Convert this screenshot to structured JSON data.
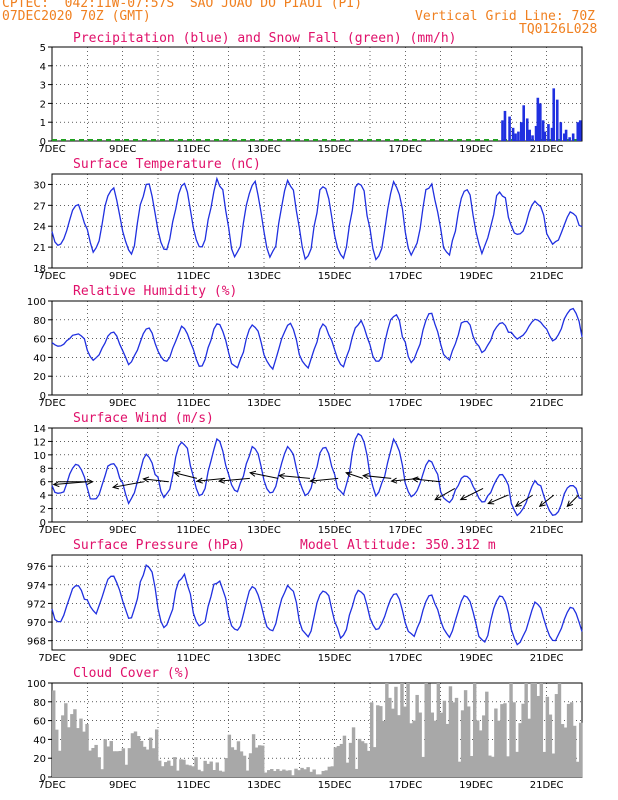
{
  "header": {
    "line1": "CPTEC:  042:11W-07:57S  SAO JOAO DO PIAUI (PI)",
    "line2_left": "07DEC2020 70Z (GMT)",
    "line2_right": "Vertical Grid Line: 70Z",
    "run_id": "TQ0126L028"
  },
  "colors": {
    "header": "#f08020",
    "title": "#e0106a",
    "series": "#2030e0",
    "snow": "#20a020",
    "cloud": "#a8a8a8"
  },
  "chart_data": [
    {
      "type": "bar",
      "title": "Precipitation (blue) and Snow Fall (green) (mm/h)",
      "ylim": [
        0,
        5
      ],
      "yticks": [
        0,
        1,
        2,
        3,
        4,
        5
      ],
      "x_start_day": 7,
      "x_end_day": 22,
      "xticks": [
        "7DEC",
        "9DEC",
        "11DEC",
        "13DEC",
        "15DEC",
        "17DEC",
        "19DEC",
        "21DEC"
      ],
      "series": [
        {
          "name": "blue",
          "x": [
            19.75,
            19.82,
            19.95,
            20.05,
            20.12,
            20.2,
            20.28,
            20.35,
            20.45,
            20.52,
            20.6,
            20.7,
            20.75,
            20.82,
            20.9,
            20.95,
            21.05,
            21.15,
            21.2,
            21.3,
            21.4,
            21.5,
            21.55,
            21.65,
            21.75,
            21.88,
            21.95
          ],
          "values": [
            1.1,
            1.6,
            1.3,
            0.7,
            0.4,
            0.5,
            1.0,
            1.9,
            1.2,
            0.6,
            0.3,
            0.8,
            2.3,
            2.0,
            1.1,
            0.5,
            0.9,
            0.7,
            2.8,
            2.2,
            1.0,
            0.4,
            0.6,
            0.2,
            0.4,
            1.0,
            1.1
          ]
        },
        {
          "name": "green",
          "values": [
            0
          ]
        }
      ]
    },
    {
      "type": "line",
      "title": "Surface Temperature (nC)",
      "ylim": [
        18,
        31.5
      ],
      "yticks": [
        18,
        21,
        24,
        27,
        30
      ],
      "xticks": [
        "7DEC",
        "9DEC",
        "11DEC",
        "13DEC",
        "15DEC",
        "17DEC",
        "19DEC",
        "21DEC"
      ],
      "x_start_day": 7,
      "x_end_day": 22,
      "days": [
        7,
        8,
        9,
        10,
        11,
        12,
        13,
        14,
        15,
        16,
        17,
        18,
        19,
        20,
        21,
        22
      ],
      "daily_max": [
        27,
        29.5,
        30,
        30.2,
        30.5,
        30.5,
        30.5,
        30.2,
        30.5,
        30.2,
        30,
        29.5,
        29,
        27.5,
        26,
        28
      ],
      "daily_min": [
        21,
        20.5,
        20,
        20.5,
        20.5,
        19.5,
        20,
        19.5,
        19.5,
        19.5,
        20,
        20,
        20.5,
        22.5,
        21.5,
        22
      ]
    },
    {
      "type": "line",
      "title": "Relative Humidity (%)",
      "ylim": [
        0,
        100
      ],
      "yticks": [
        0,
        20,
        40,
        60,
        80,
        100
      ],
      "xticks": [
        "7DEC",
        "9DEC",
        "11DEC",
        "13DEC",
        "15DEC",
        "17DEC",
        "19DEC",
        "21DEC"
      ],
      "x_start_day": 7,
      "x_end_day": 22,
      "days": [
        7,
        8,
        9,
        10,
        11,
        12,
        13,
        14,
        15,
        16,
        17,
        18,
        19,
        20,
        21,
        22
      ],
      "daily_max": [
        65,
        66,
        70,
        72,
        74,
        75,
        76,
        74,
        78,
        85,
        87,
        80,
        78,
        80,
        93,
        82
      ],
      "daily_min": [
        52,
        38,
        34,
        35,
        32,
        30,
        28,
        30,
        30,
        34,
        36,
        38,
        46,
        60,
        58,
        48
      ]
    },
    {
      "type": "line",
      "title": "Surface Wind (m/s)",
      "ylim": [
        0,
        14
      ],
      "yticks": [
        0,
        2,
        4,
        6,
        8,
        10,
        12,
        14
      ],
      "xticks": [
        "7DEC",
        "9DEC",
        "11DEC",
        "13DEC",
        "15DEC",
        "17DEC",
        "19DEC",
        "21DEC"
      ],
      "x_start_day": 7,
      "x_end_day": 22,
      "days": [
        7,
        8,
        9,
        10,
        11,
        12,
        13,
        14,
        15,
        16,
        17,
        18,
        19,
        20,
        21,
        22
      ],
      "daily_max": [
        8.5,
        9,
        10,
        12,
        12,
        11,
        11,
        11,
        13,
        12,
        9,
        7,
        7,
        6,
        5.5,
        6
      ],
      "daily_min": [
        4,
        3,
        3,
        4,
        4,
        4.5,
        4,
        4,
        4,
        4,
        4,
        3,
        3,
        1,
        1,
        2
      ],
      "wind_vectors": {
        "x": [
          7.2,
          8.0,
          9.6,
          10.3,
          11.1,
          11.9,
          12.6,
          13.4,
          14.3,
          15.1,
          15.8,
          16.6,
          17.4,
          18.0,
          18.4,
          19.2,
          19.9,
          20.6,
          21.2,
          21.9
        ],
        "speed": [
          6,
          6,
          6,
          6,
          6.5,
          6.5,
          6.5,
          6.5,
          6.5,
          6.5,
          6.5,
          6.5,
          6.5,
          6,
          5,
          5,
          4,
          4,
          4,
          4
        ],
        "dx": [
          1.2,
          -1.2,
          -1.1,
          -0.9,
          -0.8,
          -1.0,
          -1.1,
          -1.0,
          -1.1,
          -1.0,
          -0.6,
          -1.0,
          -1.0,
          -1.0,
          -0.7,
          -0.8,
          -0.7,
          -0.6,
          -0.5,
          -0.4
        ],
        "dy": [
          0,
          -0.1,
          -0.2,
          0.1,
          0.2,
          -0.1,
          -0.1,
          0.2,
          0.1,
          -0.1,
          0.2,
          0.1,
          -0.1,
          0.1,
          -0.4,
          -0.4,
          -0.3,
          -0.4,
          -0.4,
          -0.4
        ]
      }
    },
    {
      "type": "line",
      "title": "Surface Pressure (hPa)",
      "subtitle": "Model Altitude: 350.312 m",
      "ylim": [
        967,
        977.2
      ],
      "yticks": [
        968,
        970,
        972,
        974,
        976
      ],
      "xticks": [
        "7DEC",
        "9DEC",
        "11DEC",
        "13DEC",
        "15DEC",
        "17DEC",
        "19DEC",
        "21DEC"
      ],
      "x_start_day": 7,
      "x_end_day": 22,
      "days": [
        7,
        8,
        9,
        10,
        11,
        12,
        13,
        14,
        15,
        16,
        17,
        18,
        19,
        20,
        21,
        22
      ],
      "daily_max": [
        974,
        975,
        976,
        975,
        974.5,
        974,
        974,
        973.5,
        973.5,
        973,
        973,
        973,
        973,
        972,
        971.5,
        971
      ],
      "daily_min": [
        970,
        971,
        970.5,
        969.5,
        969.5,
        969,
        969,
        968.5,
        968.5,
        969,
        968.5,
        968.5,
        968,
        967.5,
        968,
        968
      ]
    },
    {
      "type": "bar",
      "title": "Cloud Cover (%)",
      "ylim": [
        0,
        100
      ],
      "yticks": [
        0,
        20,
        40,
        60,
        80,
        100
      ],
      "xticks": [
        "7DEC",
        "9DEC",
        "11DEC",
        "13DEC",
        "15DEC",
        "17DEC",
        "19DEC",
        "21DEC"
      ],
      "x_start_day": 7,
      "x_end_day": 22,
      "daily_level": [
        85,
        35,
        45,
        20,
        25,
        40,
        8,
        10,
        50,
        100,
        100,
        95,
        90,
        100,
        95,
        100
      ]
    }
  ]
}
